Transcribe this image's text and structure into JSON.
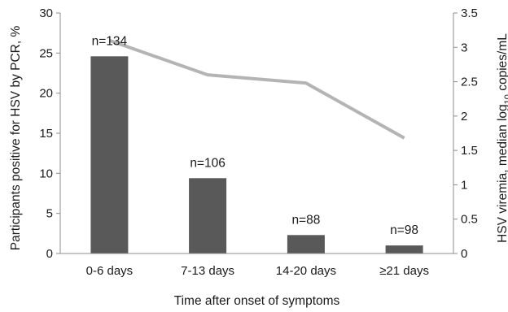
{
  "chart_data": {
    "type": "bar",
    "categories": [
      "0-6 days",
      "7-13 days",
      "14-20 days",
      "≥21 days"
    ],
    "xlabel": "Time after onset of symptoms",
    "ylabel": "Participants positive for HSV by PCR, %",
    "y2label": "HSV viremia, median log10 copies/mL",
    "y2label_parts": {
      "before": "HSV viremia, median log",
      "subscript": "10",
      "after": " copies/mL"
    },
    "ylim": [
      0,
      30
    ],
    "yticks": [
      "0",
      "5",
      "10",
      "15",
      "20",
      "25",
      "30"
    ],
    "y2lim": [
      0,
      3.5
    ],
    "y2ticks": [
      "0",
      "0.5",
      "1",
      "1.5",
      "2",
      "2.5",
      "3",
      "3.5"
    ],
    "grid": false,
    "legend": "none",
    "series": [
      {
        "type": "bar",
        "axis": "left",
        "color": "#595959",
        "values": [
          24.6,
          9.4,
          2.3,
          1.0
        ],
        "labels": [
          "n=134",
          "n=106",
          "n=88",
          "n=98"
        ]
      },
      {
        "type": "line",
        "axis": "right",
        "color": "#b4b4b4",
        "values": [
          3.1,
          2.6,
          2.48,
          1.68
        ]
      }
    ]
  }
}
